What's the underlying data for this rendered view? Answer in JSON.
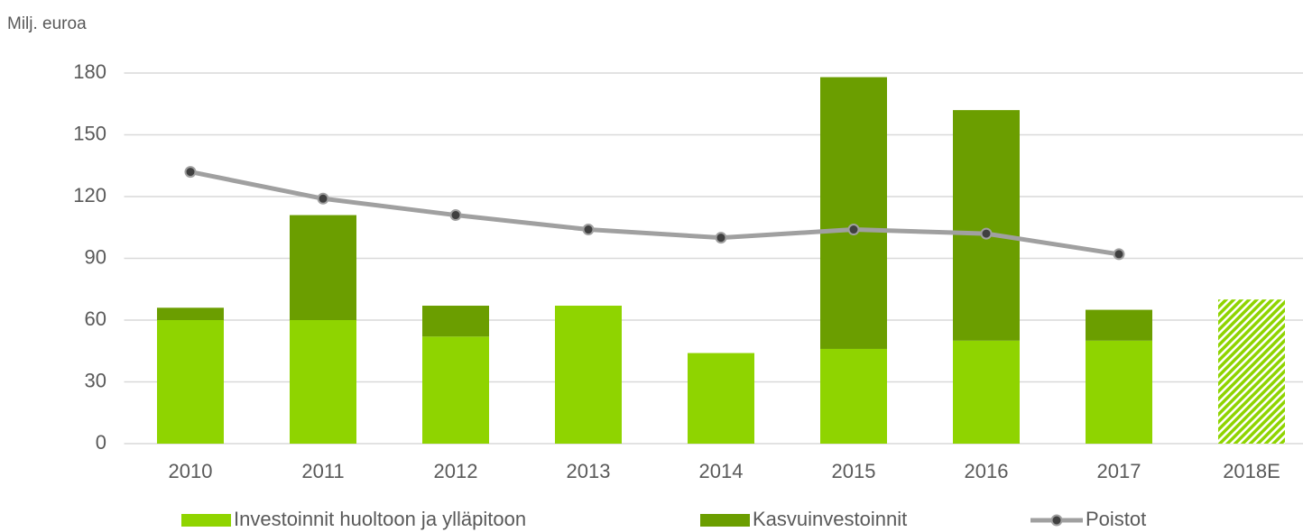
{
  "chart_data": {
    "type": "bar",
    "stacked": true,
    "y_label": "Milj. euroa",
    "categories": [
      "2010",
      "2011",
      "2012",
      "2013",
      "2014",
      "2015",
      "2016",
      "2017",
      "2018E"
    ],
    "series": [
      {
        "name": "Investoinnit huoltoon ja ylläpitoon",
        "type": "bar",
        "color": "#8fd400",
        "values": [
          60,
          60,
          52,
          67,
          44,
          46,
          50,
          50,
          70
        ],
        "hatched": [
          false,
          false,
          false,
          false,
          false,
          false,
          false,
          false,
          true
        ]
      },
      {
        "name": "Kasvuinvestoinnit",
        "type": "bar",
        "color": "#6b9e00",
        "values": [
          6,
          51,
          15,
          0,
          0,
          132,
          112,
          15,
          null
        ]
      },
      {
        "name": "Poistot",
        "type": "line",
        "color": "#a0a0a0",
        "marker_color": "#404040",
        "values": [
          132,
          119,
          111,
          104,
          100,
          104,
          102,
          92,
          null
        ]
      }
    ],
    "ylim": [
      0,
      180
    ],
    "yticks": [
      0,
      30,
      60,
      90,
      120,
      150,
      180
    ],
    "grid": true,
    "legend": "bottom"
  }
}
